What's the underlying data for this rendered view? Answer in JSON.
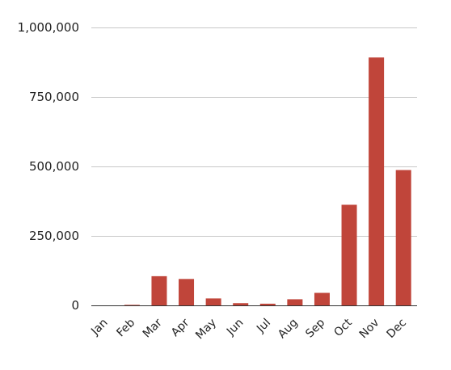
{
  "chart_data": {
    "type": "bar",
    "title": "",
    "xlabel": "",
    "ylabel": "",
    "categories": [
      "Jan",
      "Feb",
      "Mar",
      "Apr",
      "May",
      "Jun",
      "Jul",
      "Aug",
      "Sep",
      "Oct",
      "Nov",
      "Dec"
    ],
    "values": [
      0,
      2000,
      105000,
      95000,
      25000,
      8000,
      6000,
      22000,
      45000,
      362000,
      892000,
      487000
    ],
    "ylim": [
      0,
      1000000
    ],
    "yticks": [
      0,
      250000,
      500000,
      750000,
      1000000
    ],
    "ytick_labels": [
      "0",
      "250,000",
      "500,000",
      "750,000",
      "1,000,000"
    ],
    "grid": true,
    "legend": "none",
    "bar_color": "#c0453a"
  }
}
